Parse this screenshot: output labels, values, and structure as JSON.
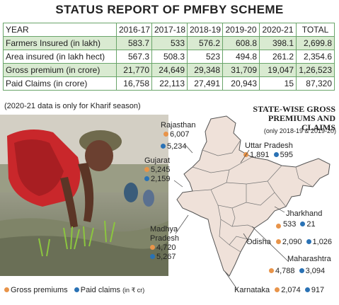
{
  "title": "STATUS REPORT OF PMFBY SCHEME",
  "table": {
    "headers": [
      "YEAR",
      "2016-17",
      "2017-18",
      "2018-19",
      "2019-20",
      "2020-21",
      "TOTAL"
    ],
    "rows": [
      {
        "label": "Farmers Insured (in lakh)",
        "values": [
          "583.7",
          "533",
          "576.2",
          "608.8",
          "398.1",
          "2,699.8"
        ]
      },
      {
        "label": "Area insured (in lakh hect)",
        "values": [
          "567.3",
          "508.3",
          "523",
          "494.8",
          "261.2",
          "2,354.6"
        ]
      },
      {
        "label": "Gross premium  (in crore)",
        "values": [
          "21,770",
          "24,649",
          "29,348",
          "31,709",
          "19,047",
          "1,26,523"
        ]
      },
      {
        "label": "Paid Claims (in crore)",
        "values": [
          "16,758",
          "22,113",
          "27,491",
          "20,943",
          "15",
          "87,320"
        ]
      }
    ]
  },
  "note": "(2020-21 data is only for Kharif season)",
  "map": {
    "title_line1": "STATE-WISE GROSS",
    "title_line2": "PREMIUMS AND CLAIMS",
    "subtitle": "(only 2018-19 & 2019-20)",
    "states": [
      {
        "name": "Rajasthan",
        "premium": "6,007",
        "claims": "5,234"
      },
      {
        "name": "Gujarat",
        "premium": "5,245",
        "claims": "2,159"
      },
      {
        "name_line1": "Madhya",
        "name_line2": "Pradesh",
        "premium": "4,720",
        "claims": "5,267"
      },
      {
        "name": "Uttar Pradesh",
        "premium": "1,891",
        "claims": "595"
      },
      {
        "name": "Jharkhand",
        "premium": "533",
        "claims": "21"
      },
      {
        "name": "Odisha",
        "premium": "2,090",
        "claims": "1,026"
      },
      {
        "name": "Maharashtra",
        "premium": "4,788",
        "claims": "3,094"
      },
      {
        "name": "Karnataka",
        "premium": "2,074",
        "claims": "917"
      }
    ]
  },
  "legend": {
    "premium_label": "Gross premiums",
    "claims_label": "Paid claims",
    "unit": "(in ₹ cr)"
  },
  "colors": {
    "premium": "#e8944a",
    "claims": "#2a72b5",
    "table_shade": "#d9ead1",
    "table_border": "#6aa56a",
    "map_fill": "#efe1d9"
  }
}
